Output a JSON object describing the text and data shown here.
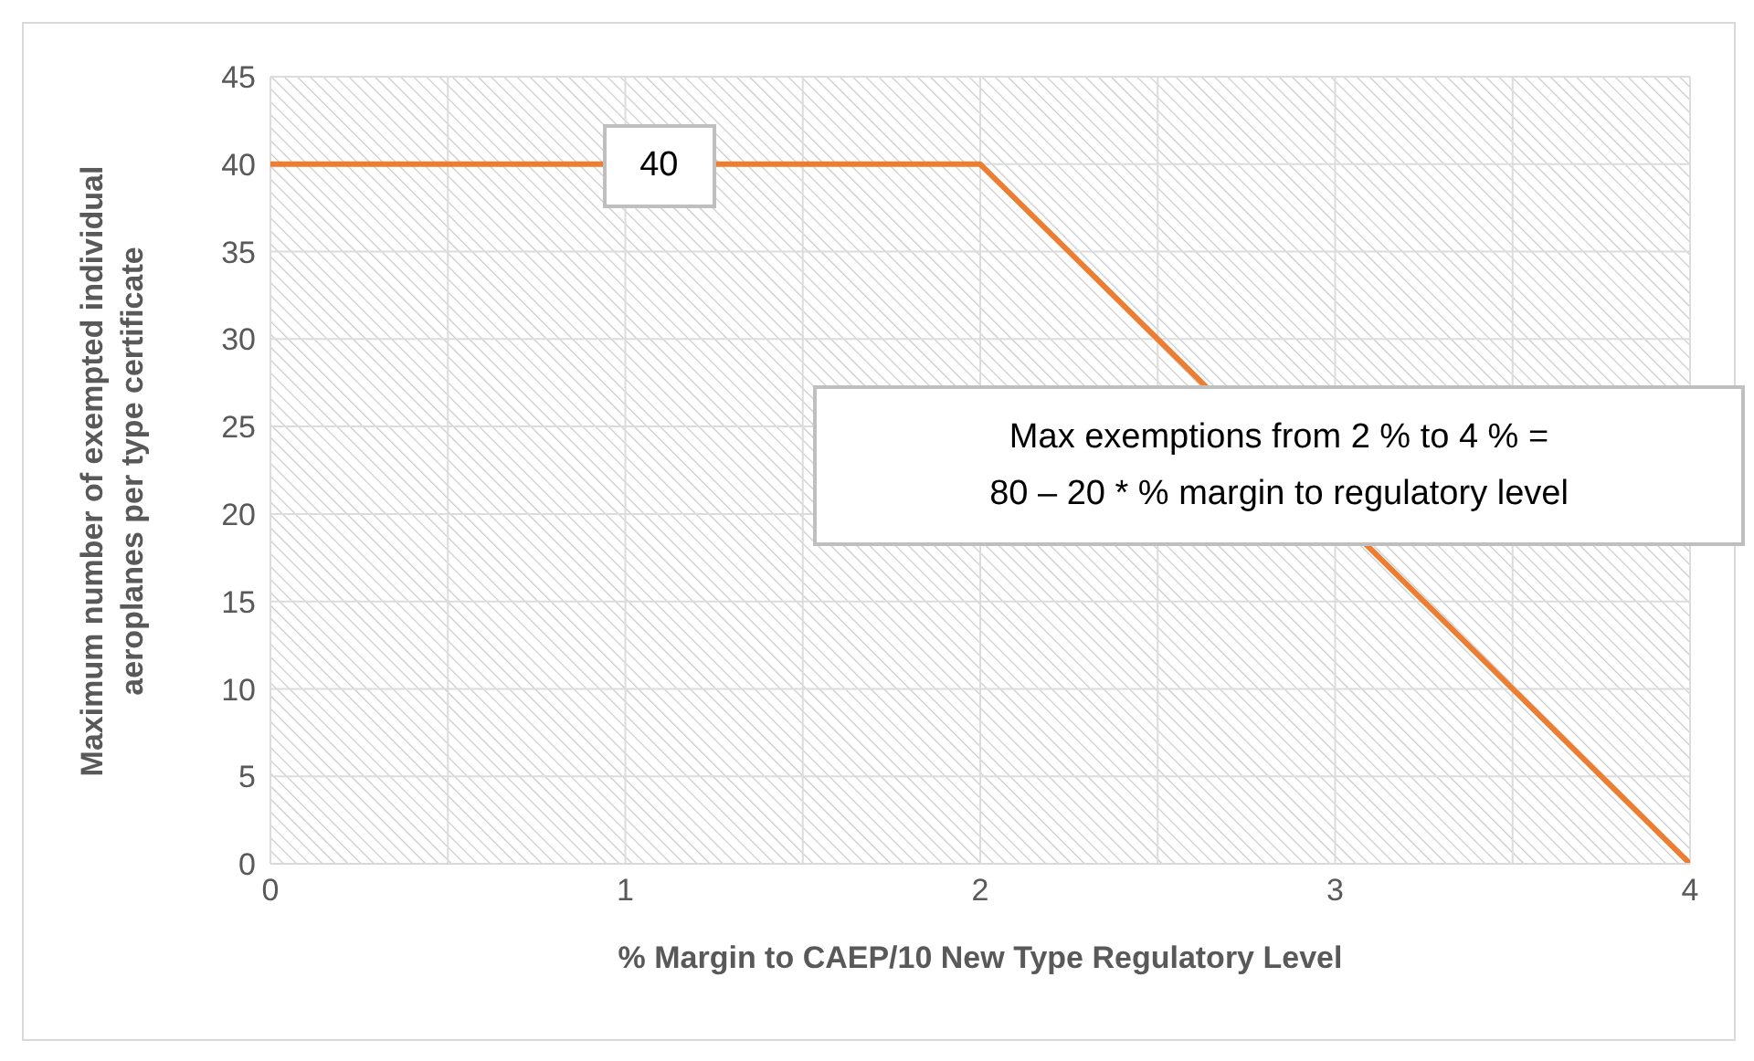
{
  "chart_data": {
    "type": "line",
    "xlabel": "% Margin to CAEP/10 New Type Regulatory Level",
    "ylabel": "Maximum number of exempted individual aeroplanes per type certificate",
    "x": [
      0,
      2,
      4
    ],
    "series": [
      {
        "color": "#ed7d31",
        "values": [
          40,
          40,
          0
        ]
      }
    ],
    "xlim": [
      0,
      4
    ],
    "xticks": [
      0,
      {
        "value": 0.5,
        "label": null
      },
      1,
      {
        "value": 1.5,
        "label": null
      },
      2,
      {
        "value": 2.5,
        "label": null
      },
      3,
      {
        "value": 3.5,
        "label": null
      },
      4
    ],
    "ylim": [
      0,
      45
    ],
    "yticks": [
      0,
      5,
      10,
      15,
      20,
      25,
      30,
      35,
      40,
      45
    ],
    "grid": true,
    "marker": "none",
    "line_style": "solid",
    "legend": false,
    "annotations": [
      {
        "text": "40",
        "x": 1.1,
        "y": 40
      },
      "Max exemptions from 2 % to 4 % =\n80 – 20 * % margin to regulatory level"
    ]
  }
}
